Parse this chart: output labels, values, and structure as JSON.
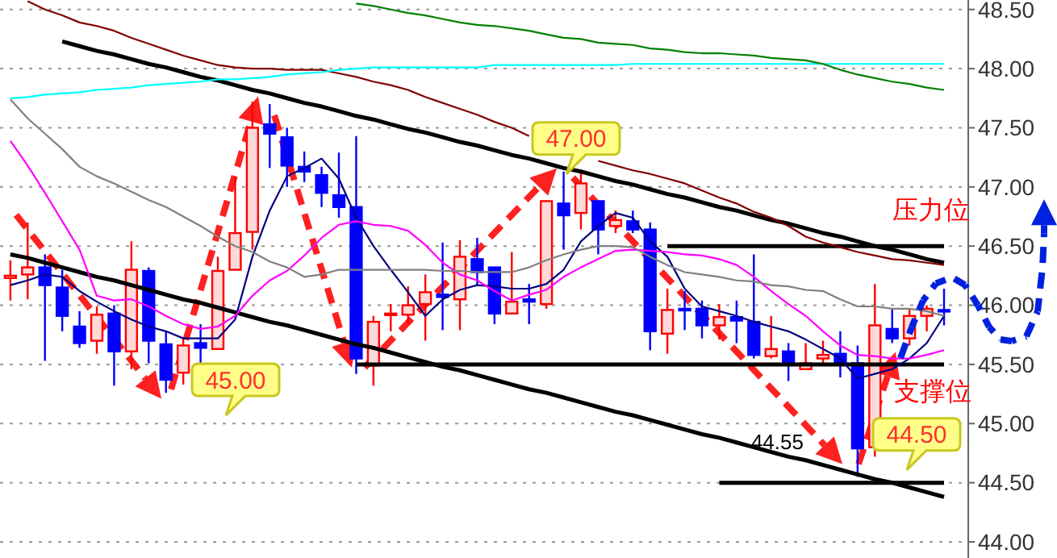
{
  "chart_data": {
    "type": "candlestick",
    "categories": [
      null,
      null,
      null,
      null,
      null,
      null,
      null,
      null,
      null,
      null,
      null,
      null,
      null,
      null,
      null,
      null,
      null,
      null,
      null,
      null,
      null,
      null,
      null,
      null,
      null,
      null,
      null,
      null,
      null,
      null,
      null,
      null,
      null,
      null,
      null,
      null,
      null,
      null,
      null,
      null,
      null,
      null,
      null,
      null,
      null,
      null,
      null,
      null,
      null,
      null,
      null,
      null,
      null,
      null,
      null
    ],
    "ohlc": [
      [
        46.23,
        46.38,
        46.04,
        46.25
      ],
      [
        46.26,
        46.7,
        46.05,
        46.32
      ],
      [
        46.32,
        46.43,
        45.53,
        46.17
      ],
      [
        46.15,
        46.3,
        45.78,
        45.91
      ],
      [
        45.82,
        45.95,
        45.64,
        45.68
      ],
      [
        45.7,
        45.99,
        45.59,
        45.92
      ],
      [
        45.93,
        46.0,
        45.32,
        45.61
      ],
      [
        45.61,
        46.54,
        45.46,
        46.3
      ],
      [
        46.29,
        46.32,
        45.51,
        45.7
      ],
      [
        45.67,
        45.78,
        45.26,
        45.37
      ],
      [
        45.43,
        45.72,
        45.33,
        45.66
      ],
      [
        45.68,
        45.84,
        45.51,
        45.64
      ],
      [
        45.63,
        46.41,
        45.63,
        46.29
      ],
      [
        46.3,
        47.09,
        46.3,
        46.61
      ],
      [
        46.62,
        47.72,
        46.47,
        47.5
      ],
      [
        47.53,
        47.7,
        47.16,
        47.45
      ],
      [
        47.42,
        47.5,
        47.0,
        47.18
      ],
      [
        47.17,
        47.3,
        47.04,
        47.13
      ],
      [
        47.1,
        47.17,
        46.83,
        46.95
      ],
      [
        46.93,
        47.29,
        46.74,
        46.83
      ],
      [
        46.83,
        47.43,
        45.42,
        45.55
      ],
      [
        45.49,
        45.91,
        45.32,
        45.86
      ],
      [
        45.92,
        46.01,
        45.78,
        45.93
      ],
      [
        45.92,
        46.16,
        45.84,
        46.0
      ],
      [
        46.01,
        46.26,
        45.7,
        46.11
      ],
      [
        46.09,
        46.53,
        45.79,
        46.07
      ],
      [
        46.05,
        46.55,
        45.79,
        46.41
      ],
      [
        46.39,
        46.57,
        46.17,
        46.28
      ],
      [
        46.32,
        46.32,
        45.84,
        45.93
      ],
      [
        45.93,
        46.45,
        45.93,
        46.03
      ],
      [
        46.05,
        46.18,
        45.84,
        46.03
      ],
      [
        46.01,
        46.88,
        45.97,
        46.88
      ],
      [
        46.86,
        47.13,
        46.47,
        46.76
      ],
      [
        46.78,
        47.13,
        46.64,
        47.03
      ],
      [
        46.88,
        46.88,
        46.43,
        46.64
      ],
      [
        46.67,
        46.8,
        46.61,
        46.72
      ],
      [
        46.71,
        46.8,
        46.61,
        46.64
      ],
      [
        46.64,
        46.7,
        45.62,
        45.78
      ],
      [
        45.76,
        46.14,
        45.59,
        45.96
      ],
      [
        45.97,
        46.12,
        45.79,
        45.97
      ],
      [
        45.97,
        46.04,
        45.72,
        45.83
      ],
      [
        45.83,
        46.01,
        45.71,
        45.9
      ],
      [
        45.9,
        46.04,
        45.68,
        45.87
      ],
      [
        45.86,
        46.43,
        45.55,
        45.58
      ],
      [
        45.57,
        45.91,
        45.55,
        45.63
      ],
      [
        45.61,
        45.68,
        45.36,
        45.51
      ],
      [
        45.46,
        45.68,
        45.46,
        45.51
      ],
      [
        45.55,
        45.7,
        45.51,
        45.58
      ],
      [
        45.59,
        45.78,
        45.39,
        45.51
      ],
      [
        45.51,
        45.66,
        44.55,
        44.79
      ],
      [
        44.8,
        46.18,
        44.72,
        45.83
      ],
      [
        45.8,
        45.97,
        45.68,
        45.72
      ],
      [
        45.72,
        45.97,
        45.66,
        45.91
      ],
      [
        45.91,
        46.0,
        45.78,
        45.97
      ],
      [
        45.96,
        46.14,
        45.83,
        45.96
      ]
    ],
    "colors": [
      "#ff0000",
      "#ff0000",
      "#0000ff",
      "#0000ff",
      "#0000ff",
      "#ff0000",
      "#0000ff",
      "#ff0000",
      "#0000ff",
      "#0000ff",
      "#ff0000",
      "#0000ff",
      "#ff0000",
      "#ff0000",
      "#ff0000",
      "#0000ff",
      "#0000ff",
      "#0000ff",
      "#0000ff",
      "#0000ff",
      "#0000ff",
      "#ff0000",
      "#ff0000",
      "#ff0000",
      "#ff0000",
      "#0000ff",
      "#ff0000",
      "#0000ff",
      "#0000ff",
      "#ff0000",
      "#0000ff",
      "#ff0000",
      "#0000ff",
      "#ff0000",
      "#0000ff",
      "#ff0000",
      "#0000ff",
      "#0000ff",
      "#ff0000",
      "#0000ff",
      "#0000ff",
      "#ff0000",
      "#0000ff",
      "#0000ff",
      "#ff0000",
      "#0000ff",
      "#ff0000",
      "#ff0000",
      "#0000ff",
      "#0000ff",
      "#ff0000",
      "#0000ff",
      "#ff0000",
      "#ff0000",
      "#0000ff"
    ],
    "series": [
      {
        "type": "line",
        "color": "#000080",
        "values": [
          46.17,
          46.21,
          46.26,
          46.24,
          46.12,
          46.03,
          45.95,
          45.88,
          45.82,
          45.78,
          45.72,
          45.72,
          45.72,
          45.88,
          46.41,
          46.8,
          47.09,
          47.16,
          47.24,
          47.07,
          46.74,
          46.5,
          46.3,
          46.11,
          45.91,
          46.05,
          46.13,
          46.17,
          46.16,
          46.14,
          46.14,
          46.18,
          46.3,
          46.54,
          46.67,
          46.78,
          46.74,
          46.54,
          46.41,
          46.14,
          45.99,
          45.95,
          45.91,
          45.86,
          45.82,
          45.78,
          45.71,
          45.63,
          45.55,
          45.38,
          45.42,
          45.46,
          45.55,
          45.68,
          45.91
        ]
      },
      {
        "type": "line",
        "color": "#ff00ff",
        "values": [
          47.39,
          47.18,
          46.95,
          46.71,
          46.47,
          46.08,
          46.04,
          46.05,
          45.99,
          45.91,
          45.84,
          45.8,
          45.82,
          45.91,
          46.08,
          46.21,
          46.29,
          46.42,
          46.57,
          46.68,
          46.71,
          46.68,
          46.67,
          46.63,
          46.51,
          46.36,
          46.26,
          46.21,
          46.12,
          46.04,
          46.09,
          46.13,
          46.24,
          46.32,
          46.39,
          46.46,
          46.47,
          46.46,
          46.45,
          46.43,
          46.42,
          46.39,
          46.34,
          46.24,
          46.12,
          46.01,
          45.91,
          45.78,
          45.66,
          45.58,
          45.57,
          45.55,
          45.55,
          45.58,
          45.62
        ]
      },
      {
        "type": "line",
        "color": "#808080",
        "values": [
          47.74,
          47.58,
          47.45,
          47.32,
          47.17,
          47.09,
          47.03,
          46.96,
          46.89,
          46.83,
          46.75,
          46.67,
          46.58,
          46.5,
          46.45,
          46.37,
          46.32,
          46.24,
          46.26,
          46.3,
          46.3,
          46.3,
          46.3,
          46.3,
          46.3,
          46.29,
          46.29,
          46.28,
          46.28,
          46.28,
          46.32,
          46.38,
          46.43,
          46.47,
          46.5,
          46.5,
          46.49,
          46.41,
          46.34,
          46.28,
          46.26,
          46.24,
          46.21,
          46.2,
          46.17,
          46.16,
          46.13,
          46.12,
          46.05,
          45.99,
          45.99,
          45.97,
          45.97,
          45.95,
          45.91
        ]
      },
      {
        "type": "line",
        "color": "#800000",
        "values": [
          null,
          48.57,
          48.5,
          48.45,
          48.39,
          48.36,
          48.32,
          48.26,
          48.21,
          48.16,
          48.11,
          48.07,
          48.03,
          48.01,
          48.0,
          48.0,
          47.99,
          47.99,
          47.99,
          47.96,
          47.93,
          47.89,
          47.86,
          47.82,
          47.76,
          47.71,
          47.66,
          47.61,
          47.55,
          47.5,
          47.43,
          null,
          null,
          null,
          47.22,
          47.18,
          47.14,
          47.11,
          47.07,
          47.03,
          46.97,
          46.91,
          46.86,
          46.79,
          46.74,
          46.67,
          46.58,
          46.53,
          46.49,
          46.45,
          46.42,
          46.39,
          46.38,
          46.36,
          46.34
        ]
      },
      {
        "type": "line",
        "color": "#00ffff",
        "values": [
          47.75,
          47.76,
          47.78,
          47.79,
          47.8,
          47.82,
          47.83,
          47.84,
          47.86,
          47.87,
          47.88,
          47.89,
          47.91,
          47.91,
          47.92,
          47.93,
          47.95,
          47.96,
          47.97,
          47.99,
          48.0,
          48.01,
          48.01,
          48.01,
          48.01,
          48.01,
          48.01,
          48.01,
          48.03,
          48.03,
          48.03,
          48.03,
          48.03,
          48.03,
          48.03,
          48.03,
          48.04,
          48.04,
          48.04,
          48.04,
          48.04,
          48.04,
          48.04,
          48.04,
          48.04,
          48.04,
          48.04,
          48.04,
          48.04,
          48.04,
          48.04,
          48.04,
          48.04,
          48.04,
          48.04
        ]
      },
      {
        "type": "line",
        "color": "#008000",
        "values": [
          null,
          null,
          null,
          null,
          null,
          null,
          null,
          null,
          null,
          null,
          null,
          null,
          null,
          null,
          null,
          null,
          null,
          null,
          null,
          null,
          48.55,
          48.53,
          48.5,
          48.47,
          48.45,
          48.42,
          48.39,
          48.37,
          48.36,
          48.34,
          48.32,
          48.29,
          48.26,
          48.25,
          48.22,
          48.21,
          48.2,
          48.17,
          48.16,
          48.14,
          48.13,
          48.13,
          48.12,
          48.11,
          48.09,
          48.08,
          48.07,
          48.04,
          47.99,
          47.95,
          47.92,
          47.89,
          47.87,
          47.84,
          47.82
        ]
      },
      {
        "type": "line",
        "color": "#000000",
        "values": [
          null,
          null,
          null,
          48.23,
          48.19,
          48.15,
          48.12,
          48.08,
          48.04,
          48.01,
          47.97,
          47.93,
          47.9,
          47.86,
          47.82,
          47.79,
          47.75,
          47.71,
          47.68,
          47.64,
          47.6,
          47.57,
          47.53,
          47.49,
          47.46,
          47.42,
          47.38,
          47.35,
          47.31,
          47.27,
          47.24,
          47.2,
          47.16,
          47.13,
          47.09,
          47.05,
          47.02,
          46.98,
          46.94,
          46.91,
          46.87,
          46.83,
          46.8,
          46.76,
          46.72,
          46.69,
          46.65,
          46.61,
          46.58,
          46.54,
          46.5,
          46.47,
          46.43,
          46.39,
          46.36
        ]
      },
      {
        "type": "line",
        "color": "#000000",
        "values": [
          46.43,
          46.4,
          46.36,
          46.32,
          46.28,
          46.24,
          46.21,
          46.17,
          46.13,
          46.09,
          46.05,
          46.02,
          45.98,
          45.94,
          45.9,
          45.86,
          45.83,
          45.79,
          45.75,
          45.71,
          45.67,
          45.64,
          45.6,
          45.56,
          45.52,
          45.48,
          45.45,
          45.41,
          45.37,
          45.33,
          45.29,
          45.26,
          45.22,
          45.18,
          45.14,
          45.1,
          45.07,
          45.03,
          44.99,
          44.95,
          44.91,
          44.88,
          44.84,
          44.8,
          44.76,
          44.72,
          44.69,
          44.65,
          44.61,
          44.57,
          44.53,
          44.5,
          44.46,
          44.42,
          44.38
        ]
      },
      {
        "type": "line",
        "color": "#000000",
        "values": [
          null,
          null,
          null,
          null,
          null,
          null,
          null,
          null,
          null,
          null,
          null,
          null,
          null,
          null,
          null,
          null,
          null,
          null,
          null,
          null,
          null,
          null,
          null,
          null,
          null,
          null,
          null,
          null,
          null,
          null,
          null,
          null,
          null,
          null,
          null,
          null,
          null,
          null,
          46.5,
          46.5,
          46.5,
          46.5,
          46.5,
          46.5,
          46.5,
          46.5,
          46.5,
          46.5,
          46.5,
          46.5,
          46.5,
          46.5,
          46.5,
          46.5,
          46.5
        ]
      },
      {
        "type": "line",
        "color": "#000000",
        "values": [
          null,
          null,
          null,
          null,
          null,
          null,
          null,
          null,
          null,
          null,
          null,
          null,
          null,
          null,
          null,
          null,
          null,
          null,
          null,
          null,
          45.5,
          45.5,
          45.5,
          45.5,
          45.5,
          45.5,
          45.5,
          45.5,
          45.5,
          45.5,
          45.5,
          45.5,
          45.5,
          45.5,
          45.5,
          45.5,
          45.5,
          45.5,
          45.5,
          45.5,
          45.5,
          45.5,
          45.5,
          45.5,
          45.5,
          45.5,
          45.5,
          45.5,
          45.5,
          45.5,
          45.5,
          45.5,
          45.5,
          45.5,
          45.5
        ]
      },
      {
        "type": "line",
        "color": "#000000",
        "values": [
          null,
          null,
          null,
          null,
          null,
          null,
          null,
          null,
          null,
          null,
          null,
          null,
          null,
          null,
          null,
          null,
          null,
          null,
          null,
          null,
          null,
          null,
          null,
          null,
          null,
          null,
          null,
          null,
          null,
          null,
          null,
          null,
          null,
          null,
          null,
          null,
          null,
          null,
          null,
          null,
          null,
          44.5,
          44.5,
          44.5,
          44.5,
          44.5,
          44.5,
          44.5,
          44.5,
          44.5,
          44.5,
          44.5,
          44.5,
          44.5,
          44.5
        ]
      }
    ],
    "ylim": [
      44.0,
      48.58
    ],
    "yticks": [
      {
        "value": 44,
        "label": "44.00"
      },
      {
        "value": 44.5,
        "label": "44.50"
      },
      {
        "value": 45,
        "label": "45.00"
      },
      {
        "value": 45.5,
        "label": "45.50"
      },
      {
        "value": 46,
        "label": "46.00"
      },
      {
        "value": 46.5,
        "label": "46.50"
      },
      {
        "value": 47,
        "label": "47.00"
      },
      {
        "value": 47.5,
        "label": "47.50"
      },
      {
        "value": 48,
        "label": "48.00"
      },
      {
        "value": 48.5,
        "label": "48.50"
      }
    ],
    "tick_labels": "y",
    "grid": "y",
    "annotations": [
      "45.00",
      {
        "text": "47.00",
        "y": 47.0
      },
      {
        "text": "44.50",
        "y": 44.5
      },
      {
        "text": "44.55",
        "y": 44.55
      },
      {
        "text": "压力位",
        "y": 46.5
      },
      {
        "text": "支撑位",
        "y": 45.5
      }
    ]
  }
}
